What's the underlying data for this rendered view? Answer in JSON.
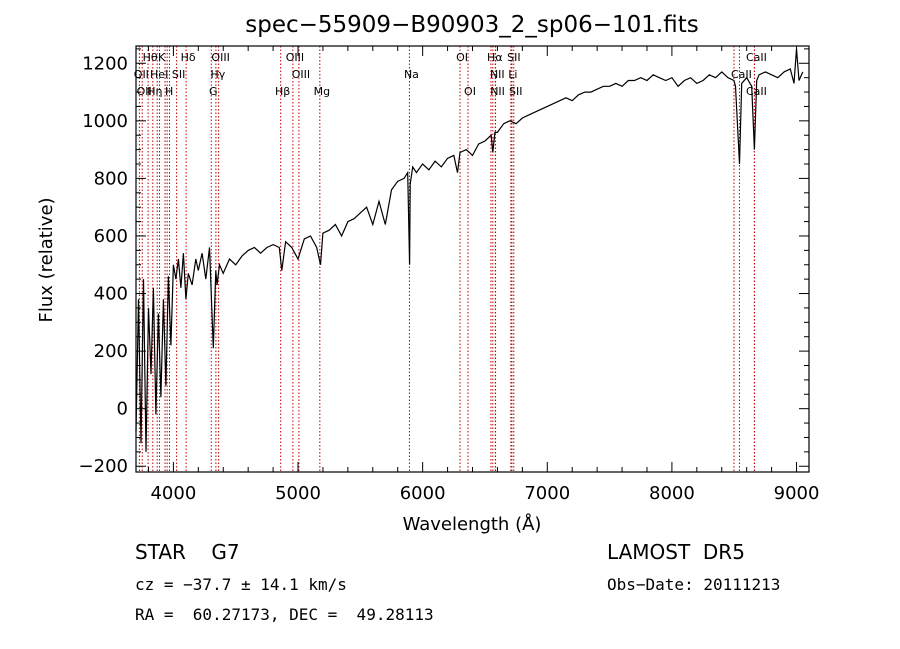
{
  "chart_data": {
    "type": "line",
    "title": "spec−55909−B90903_2_sp06−101.fits",
    "xlabel": "Wavelength (Å)",
    "ylabel": "Flux (relative)",
    "xlim": [
      3700,
      9100
    ],
    "ylim": [
      -220,
      1260
    ],
    "xticks": [
      4000,
      5000,
      6000,
      7000,
      8000,
      9000
    ],
    "yticks": [
      -200,
      0,
      200,
      400,
      600,
      800,
      1000,
      1200
    ],
    "grid": false,
    "series": [
      {
        "x": [
          3700,
          3720,
          3740,
          3760,
          3780,
          3800,
          3820,
          3840,
          3860,
          3880,
          3900,
          3920,
          3940,
          3960,
          3980,
          4000,
          4020,
          4040,
          4060,
          4080,
          4100,
          4120,
          4150,
          4180,
          4200,
          4230,
          4260,
          4290,
          4320,
          4340,
          4350,
          4370,
          4400,
          4450,
          4500,
          4550,
          4600,
          4650,
          4700,
          4750,
          4800,
          4850,
          4870,
          4900,
          4950,
          5000,
          5050,
          5100,
          5150,
          5180,
          5200,
          5250,
          5300,
          5350,
          5400,
          5450,
          5500,
          5550,
          5600,
          5650,
          5700,
          5750,
          5800,
          5850,
          5880,
          5895,
          5900,
          5920,
          5950,
          6000,
          6050,
          6100,
          6150,
          6200,
          6250,
          6280,
          6300,
          6350,
          6400,
          6450,
          6500,
          6550,
          6563,
          6580,
          6600,
          6650,
          6700,
          6750,
          6800,
          6850,
          6900,
          6950,
          7000,
          7050,
          7100,
          7150,
          7200,
          7250,
          7300,
          7350,
          7400,
          7450,
          7500,
          7550,
          7600,
          7650,
          7700,
          7750,
          7800,
          7850,
          7900,
          7950,
          8000,
          8050,
          8100,
          8150,
          8200,
          8250,
          8300,
          8350,
          8400,
          8450,
          8498,
          8510,
          8542,
          8560,
          8600,
          8640,
          8662,
          8680,
          8700,
          8750,
          8800,
          8850,
          8900,
          8950,
          8980,
          9000,
          9020,
          9050
        ],
        "y": [
          -80,
          380,
          -120,
          450,
          -150,
          350,
          120,
          420,
          -20,
          330,
          40,
          380,
          80,
          460,
          220,
          500,
          450,
          520,
          420,
          540,
          380,
          470,
          430,
          520,
          480,
          540,
          450,
          560,
          210,
          480,
          430,
          500,
          470,
          520,
          500,
          530,
          550,
          560,
          540,
          560,
          570,
          560,
          480,
          580,
          560,
          520,
          590,
          600,
          560,
          500,
          610,
          620,
          640,
          600,
          650,
          660,
          680,
          700,
          640,
          720,
          640,
          760,
          790,
          800,
          820,
          500,
          780,
          840,
          820,
          850,
          830,
          860,
          840,
          870,
          880,
          820,
          890,
          900,
          880,
          920,
          930,
          950,
          890,
          960,
          960,
          990,
          1000,
          990,
          1010,
          1020,
          1030,
          1040,
          1050,
          1060,
          1070,
          1080,
          1070,
          1090,
          1100,
          1100,
          1110,
          1120,
          1120,
          1130,
          1120,
          1140,
          1140,
          1150,
          1140,
          1160,
          1150,
          1140,
          1150,
          1120,
          1140,
          1150,
          1130,
          1140,
          1160,
          1150,
          1170,
          1150,
          1140,
          1120,
          850,
          1130,
          1150,
          1120,
          900,
          1140,
          1160,
          1170,
          1160,
          1150,
          1170,
          1180,
          1130,
          1250,
          1140,
          1170
        ]
      }
    ],
    "lines": [
      {
        "wave": 3727,
        "label": "OII",
        "row": 2
      },
      {
        "wave": 3750,
        "label": "OII",
        "row": 3
      },
      {
        "wave": 3797,
        "label": "Hθ",
        "row": 1
      },
      {
        "wave": 3835,
        "label": "Hη",
        "row": 3
      },
      {
        "wave": 3870,
        "label": "HeI",
        "row": 2
      },
      {
        "wave": 3889,
        "label": "K",
        "row": 1
      },
      {
        "wave": 3933,
        "label": "",
        "row": 0
      },
      {
        "wave": 3950,
        "label": "H",
        "row": 3
      },
      {
        "wave": 3969,
        "label": "",
        "row": 0
      },
      {
        "wave": 4026,
        "label": "SII",
        "row": 2
      },
      {
        "wave": 4102,
        "label": "Hδ",
        "row": 1
      },
      {
        "wave": 4304,
        "label": "G",
        "row": 3
      },
      {
        "wave": 4341,
        "label": "Hγ",
        "row": 2
      },
      {
        "wave": 4363,
        "label": "OIII",
        "row": 1
      },
      {
        "wave": 4861,
        "label": "Hβ",
        "row": 3
      },
      {
        "wave": 4959,
        "label": "OIII",
        "row": 1
      },
      {
        "wave": 5007,
        "label": "OIII",
        "row": 2
      },
      {
        "wave": 5175,
        "label": "Mg",
        "row": 3
      },
      {
        "wave": 5894,
        "label": "Na",
        "row": 2
      },
      {
        "wave": 6300,
        "label": "OI",
        "row": 1
      },
      {
        "wave": 6364,
        "label": "OI",
        "row": 3
      },
      {
        "wave": 6548,
        "label": "",
        "row": 0
      },
      {
        "wave": 6563,
        "label": "Hα",
        "row": 1
      },
      {
        "wave": 6583,
        "label": "NII",
        "row": 2
      },
      {
        "wave": 6585,
        "label": "NII",
        "row": 3
      },
      {
        "wave": 6708,
        "label": "Li",
        "row": 2
      },
      {
        "wave": 6716,
        "label": "SII",
        "row": 1
      },
      {
        "wave": 6731,
        "label": "SII",
        "row": 3
      },
      {
        "wave": 8498,
        "label": "",
        "row": 0
      },
      {
        "wave": 8542,
        "label": "CaII",
        "row": 2
      },
      {
        "wave": 8662,
        "label": "CaII",
        "row": 1
      },
      {
        "wave": 8662,
        "label": "CaII",
        "row": 3
      }
    ]
  },
  "info": {
    "object": "STAR    G7",
    "survey": "LAMOST  DR5",
    "cz": "cz = −37.7 ± 14.1 km/s",
    "obs_date": "Obs−Date: 20111213",
    "coords": "RA =  60.27173, DEC =  49.28113"
  }
}
